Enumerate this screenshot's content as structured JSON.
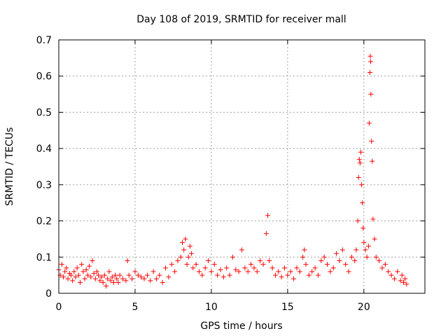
{
  "chart_data": {
    "type": "scatter",
    "title": "Day 108 of 2019, SRMTID for receiver mall",
    "xlabel": "GPS time / hours",
    "ylabel": "SRMTID / TECUs",
    "xlim": [
      0,
      24
    ],
    "ylim": [
      0,
      0.7
    ],
    "xticks": [
      0,
      5,
      10,
      15,
      20
    ],
    "xtick_labels": [
      "0",
      "5",
      "10",
      "15",
      "20"
    ],
    "yticks": [
      0,
      0.1,
      0.2,
      0.3,
      0.4,
      0.5,
      0.6,
      0.7
    ],
    "ytick_labels": [
      "0",
      "0.1",
      "0.2",
      "0.3",
      "0.4",
      "0.5",
      "0.6",
      "0.7"
    ],
    "grid": true,
    "marker": "+",
    "marker_color": "#ff0000",
    "series": [
      {
        "name": "SRMTID",
        "points": [
          [
            0.0,
            0.065
          ],
          [
            0.1,
            0.05
          ],
          [
            0.2,
            0.08
          ],
          [
            0.3,
            0.045
          ],
          [
            0.4,
            0.06
          ],
          [
            0.5,
            0.07
          ],
          [
            0.6,
            0.04
          ],
          [
            0.7,
            0.055
          ],
          [
            0.8,
            0.05
          ],
          [
            0.9,
            0.035
          ],
          [
            1.0,
            0.06
          ],
          [
            1.1,
            0.045
          ],
          [
            1.2,
            0.07
          ],
          [
            1.3,
            0.05
          ],
          [
            1.4,
            0.03
          ],
          [
            1.5,
            0.08
          ],
          [
            1.6,
            0.06
          ],
          [
            1.7,
            0.04
          ],
          [
            1.8,
            0.065
          ],
          [
            1.9,
            0.05
          ],
          [
            2.0,
            0.075
          ],
          [
            2.1,
            0.045
          ],
          [
            2.2,
            0.09
          ],
          [
            2.3,
            0.055
          ],
          [
            2.4,
            0.04
          ],
          [
            2.5,
            0.06
          ],
          [
            2.6,
            0.05
          ],
          [
            2.7,
            0.035
          ],
          [
            2.8,
            0.045
          ],
          [
            2.9,
            0.03
          ],
          [
            3.0,
            0.05
          ],
          [
            3.1,
            0.02
          ],
          [
            3.2,
            0.04
          ],
          [
            3.3,
            0.06
          ],
          [
            3.4,
            0.035
          ],
          [
            3.5,
            0.045
          ],
          [
            3.6,
            0.03
          ],
          [
            3.7,
            0.05
          ],
          [
            3.8,
            0.04
          ],
          [
            3.9,
            0.03
          ],
          [
            4.0,
            0.05
          ],
          [
            4.2,
            0.04
          ],
          [
            4.4,
            0.035
          ],
          [
            4.5,
            0.09
          ],
          [
            4.6,
            0.05
          ],
          [
            4.8,
            0.04
          ],
          [
            5.0,
            0.06
          ],
          [
            5.2,
            0.05
          ],
          [
            5.4,
            0.045
          ],
          [
            5.6,
            0.04
          ],
          [
            5.8,
            0.05
          ],
          [
            6.0,
            0.035
          ],
          [
            6.2,
            0.06
          ],
          [
            6.4,
            0.04
          ],
          [
            6.6,
            0.05
          ],
          [
            6.8,
            0.03
          ],
          [
            7.0,
            0.07
          ],
          [
            7.2,
            0.045
          ],
          [
            7.4,
            0.08
          ],
          [
            7.6,
            0.06
          ],
          [
            7.8,
            0.09
          ],
          [
            8.0,
            0.1
          ],
          [
            8.1,
            0.14
          ],
          [
            8.2,
            0.12
          ],
          [
            8.3,
            0.15
          ],
          [
            8.4,
            0.08
          ],
          [
            8.5,
            0.1
          ],
          [
            8.6,
            0.13
          ],
          [
            8.7,
            0.11
          ],
          [
            8.8,
            0.07
          ],
          [
            9.0,
            0.08
          ],
          [
            9.2,
            0.06
          ],
          [
            9.4,
            0.05
          ],
          [
            9.6,
            0.07
          ],
          [
            9.8,
            0.09
          ],
          [
            10.0,
            0.06
          ],
          [
            10.2,
            0.08
          ],
          [
            10.4,
            0.05
          ],
          [
            10.6,
            0.065
          ],
          [
            10.8,
            0.045
          ],
          [
            11.0,
            0.07
          ],
          [
            11.2,
            0.05
          ],
          [
            11.4,
            0.1
          ],
          [
            11.6,
            0.065
          ],
          [
            11.8,
            0.06
          ],
          [
            12.0,
            0.12
          ],
          [
            12.2,
            0.07
          ],
          [
            12.4,
            0.06
          ],
          [
            12.6,
            0.08
          ],
          [
            12.8,
            0.07
          ],
          [
            13.0,
            0.06
          ],
          [
            13.2,
            0.09
          ],
          [
            13.4,
            0.08
          ],
          [
            13.6,
            0.165
          ],
          [
            13.7,
            0.215
          ],
          [
            13.8,
            0.09
          ],
          [
            14.0,
            0.07
          ],
          [
            14.2,
            0.05
          ],
          [
            14.4,
            0.06
          ],
          [
            14.6,
            0.045
          ],
          [
            14.8,
            0.07
          ],
          [
            15.0,
            0.05
          ],
          [
            15.2,
            0.06
          ],
          [
            15.4,
            0.04
          ],
          [
            15.6,
            0.07
          ],
          [
            15.8,
            0.06
          ],
          [
            16.0,
            0.1
          ],
          [
            16.1,
            0.12
          ],
          [
            16.2,
            0.08
          ],
          [
            16.4,
            0.05
          ],
          [
            16.6,
            0.06
          ],
          [
            16.8,
            0.07
          ],
          [
            17.0,
            0.05
          ],
          [
            17.2,
            0.09
          ],
          [
            17.4,
            0.1
          ],
          [
            17.6,
            0.08
          ],
          [
            17.8,
            0.06
          ],
          [
            18.0,
            0.07
          ],
          [
            18.2,
            0.11
          ],
          [
            18.4,
            0.09
          ],
          [
            18.6,
            0.12
          ],
          [
            18.8,
            0.08
          ],
          [
            19.0,
            0.06
          ],
          [
            19.2,
            0.1
          ],
          [
            19.4,
            0.09
          ],
          [
            19.5,
            0.12
          ],
          [
            19.6,
            0.2
          ],
          [
            19.65,
            0.32
          ],
          [
            19.7,
            0.37
          ],
          [
            19.75,
            0.36
          ],
          [
            19.8,
            0.39
          ],
          [
            19.85,
            0.3
          ],
          [
            19.9,
            0.25
          ],
          [
            19.95,
            0.18
          ],
          [
            20.0,
            0.14
          ],
          [
            20.1,
            0.12
          ],
          [
            20.2,
            0.1
          ],
          [
            20.3,
            0.13
          ],
          [
            20.35,
            0.47
          ],
          [
            20.4,
            0.61
          ],
          [
            20.42,
            0.655
          ],
          [
            20.44,
            0.64
          ],
          [
            20.46,
            0.55
          ],
          [
            20.5,
            0.42
          ],
          [
            20.55,
            0.365
          ],
          [
            20.6,
            0.205
          ],
          [
            20.7,
            0.15
          ],
          [
            20.8,
            0.1
          ],
          [
            21.0,
            0.09
          ],
          [
            21.2,
            0.07
          ],
          [
            21.4,
            0.08
          ],
          [
            21.6,
            0.06
          ],
          [
            21.8,
            0.05
          ],
          [
            22.0,
            0.04
          ],
          [
            22.2,
            0.06
          ],
          [
            22.4,
            0.035
          ],
          [
            22.5,
            0.05
          ],
          [
            22.6,
            0.03
          ],
          [
            22.7,
            0.04
          ],
          [
            22.8,
            0.025
          ]
        ]
      }
    ]
  }
}
